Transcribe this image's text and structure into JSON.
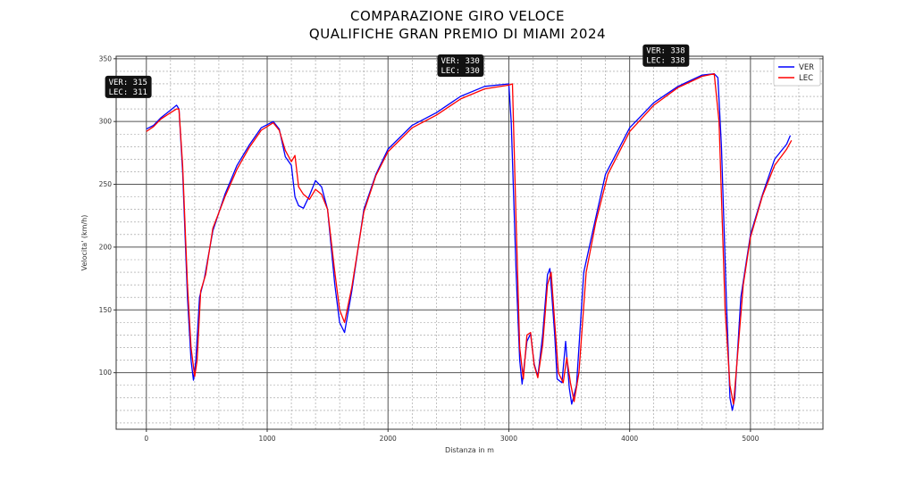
{
  "chart_data": {
    "type": "line",
    "title_line1": "COMPARAZIONE GIRO VELOCE",
    "title_line2": "QUALIFICHE GRAN PREMIO DI MIAMI 2024",
    "xlabel": "Distanza in m",
    "ylabel": "Velocita' (km/h)",
    "xlim": [
      -250,
      5600
    ],
    "ylim": [
      55,
      352
    ],
    "x_ticks": [
      0,
      1000,
      2000,
      3000,
      4000,
      5000
    ],
    "y_ticks": [
      100,
      150,
      200,
      250,
      300,
      350
    ],
    "grid": true,
    "legend_position": "top-right",
    "series": [
      {
        "name": "VER",
        "color": "#0000ff",
        "points": [
          [
            0,
            294
          ],
          [
            60,
            297
          ],
          [
            120,
            303
          ],
          [
            200,
            309
          ],
          [
            250,
            313
          ],
          [
            270,
            310
          ],
          [
            300,
            260
          ],
          [
            340,
            160
          ],
          [
            370,
            110
          ],
          [
            390,
            94
          ],
          [
            410,
            110
          ],
          [
            440,
            160
          ],
          [
            480,
            175
          ],
          [
            550,
            213
          ],
          [
            650,
            242
          ],
          [
            750,
            265
          ],
          [
            850,
            281
          ],
          [
            950,
            295
          ],
          [
            1050,
            300
          ],
          [
            1100,
            294
          ],
          [
            1150,
            272
          ],
          [
            1200,
            265
          ],
          [
            1230,
            240
          ],
          [
            1260,
            233
          ],
          [
            1300,
            231
          ],
          [
            1350,
            241
          ],
          [
            1400,
            253
          ],
          [
            1450,
            248
          ],
          [
            1500,
            230
          ],
          [
            1560,
            170
          ],
          [
            1600,
            140
          ],
          [
            1640,
            132
          ],
          [
            1700,
            165
          ],
          [
            1800,
            230
          ],
          [
            1900,
            258
          ],
          [
            2000,
            278
          ],
          [
            2200,
            297
          ],
          [
            2400,
            307
          ],
          [
            2600,
            320
          ],
          [
            2800,
            328
          ],
          [
            3000,
            330
          ],
          [
            3020,
            300
          ],
          [
            3060,
            180
          ],
          [
            3090,
            110
          ],
          [
            3110,
            91
          ],
          [
            3150,
            125
          ],
          [
            3180,
            131
          ],
          [
            3210,
            107
          ],
          [
            3240,
            97
          ],
          [
            3280,
            130
          ],
          [
            3320,
            178
          ],
          [
            3340,
            183
          ],
          [
            3380,
            130
          ],
          [
            3400,
            95
          ],
          [
            3440,
            92
          ],
          [
            3470,
            125
          ],
          [
            3500,
            88
          ],
          [
            3520,
            75
          ],
          [
            3560,
            90
          ],
          [
            3620,
            180
          ],
          [
            3700,
            215
          ],
          [
            3800,
            258
          ],
          [
            4000,
            295
          ],
          [
            4200,
            315
          ],
          [
            4400,
            328
          ],
          [
            4600,
            337
          ],
          [
            4700,
            338
          ],
          [
            4730,
            335
          ],
          [
            4760,
            280
          ],
          [
            4800,
            160
          ],
          [
            4830,
            80
          ],
          [
            4850,
            70
          ],
          [
            4870,
            80
          ],
          [
            4920,
            160
          ],
          [
            5000,
            210
          ],
          [
            5100,
            242
          ],
          [
            5200,
            270
          ],
          [
            5300,
            282
          ],
          [
            5330,
            289
          ]
        ]
      },
      {
        "name": "LEC",
        "color": "#ff0000",
        "points": [
          [
            0,
            292
          ],
          [
            60,
            296
          ],
          [
            120,
            302
          ],
          [
            200,
            307
          ],
          [
            250,
            310
          ],
          [
            270,
            310
          ],
          [
            300,
            265
          ],
          [
            340,
            170
          ],
          [
            370,
            120
          ],
          [
            400,
            97
          ],
          [
            420,
            110
          ],
          [
            450,
            165
          ],
          [
            490,
            178
          ],
          [
            550,
            215
          ],
          [
            650,
            240
          ],
          [
            750,
            262
          ],
          [
            850,
            279
          ],
          [
            950,
            293
          ],
          [
            1050,
            299
          ],
          [
            1100,
            293
          ],
          [
            1150,
            277
          ],
          [
            1200,
            268
          ],
          [
            1230,
            273
          ],
          [
            1260,
            248
          ],
          [
            1300,
            242
          ],
          [
            1350,
            238
          ],
          [
            1400,
            246
          ],
          [
            1450,
            242
          ],
          [
            1500,
            230
          ],
          [
            1560,
            180
          ],
          [
            1600,
            150
          ],
          [
            1640,
            140
          ],
          [
            1700,
            168
          ],
          [
            1800,
            228
          ],
          [
            1900,
            257
          ],
          [
            2000,
            276
          ],
          [
            2200,
            295
          ],
          [
            2400,
            305
          ],
          [
            2600,
            318
          ],
          [
            2800,
            326
          ],
          [
            3000,
            329
          ],
          [
            3030,
            330
          ],
          [
            3060,
            220
          ],
          [
            3090,
            120
          ],
          [
            3120,
            95
          ],
          [
            3150,
            130
          ],
          [
            3180,
            132
          ],
          [
            3210,
            106
          ],
          [
            3240,
            96
          ],
          [
            3280,
            122
          ],
          [
            3320,
            170
          ],
          [
            3350,
            180
          ],
          [
            3380,
            140
          ],
          [
            3410,
            100
          ],
          [
            3450,
            92
          ],
          [
            3480,
            112
          ],
          [
            3510,
            92
          ],
          [
            3540,
            77
          ],
          [
            3580,
            100
          ],
          [
            3640,
            180
          ],
          [
            3720,
            220
          ],
          [
            3820,
            258
          ],
          [
            4000,
            292
          ],
          [
            4200,
            313
          ],
          [
            4400,
            327
          ],
          [
            4600,
            336
          ],
          [
            4700,
            338
          ],
          [
            4740,
            300
          ],
          [
            4790,
            150
          ],
          [
            4830,
            90
          ],
          [
            4860,
            75
          ],
          [
            4890,
            110
          ],
          [
            4940,
            170
          ],
          [
            5000,
            208
          ],
          [
            5100,
            241
          ],
          [
            5200,
            265
          ],
          [
            5300,
            278
          ],
          [
            5340,
            285
          ]
        ]
      }
    ],
    "annotations": [
      {
        "line1": "VER: 315",
        "line2": "LEC: 311",
        "x": 250,
        "y": 313
      },
      {
        "line1": "VER: 330",
        "line2": "LEC: 330",
        "x": 3000,
        "y": 330
      },
      {
        "line1": "VER: 338",
        "line2": "LEC: 338",
        "x": 4700,
        "y": 338
      }
    ]
  }
}
